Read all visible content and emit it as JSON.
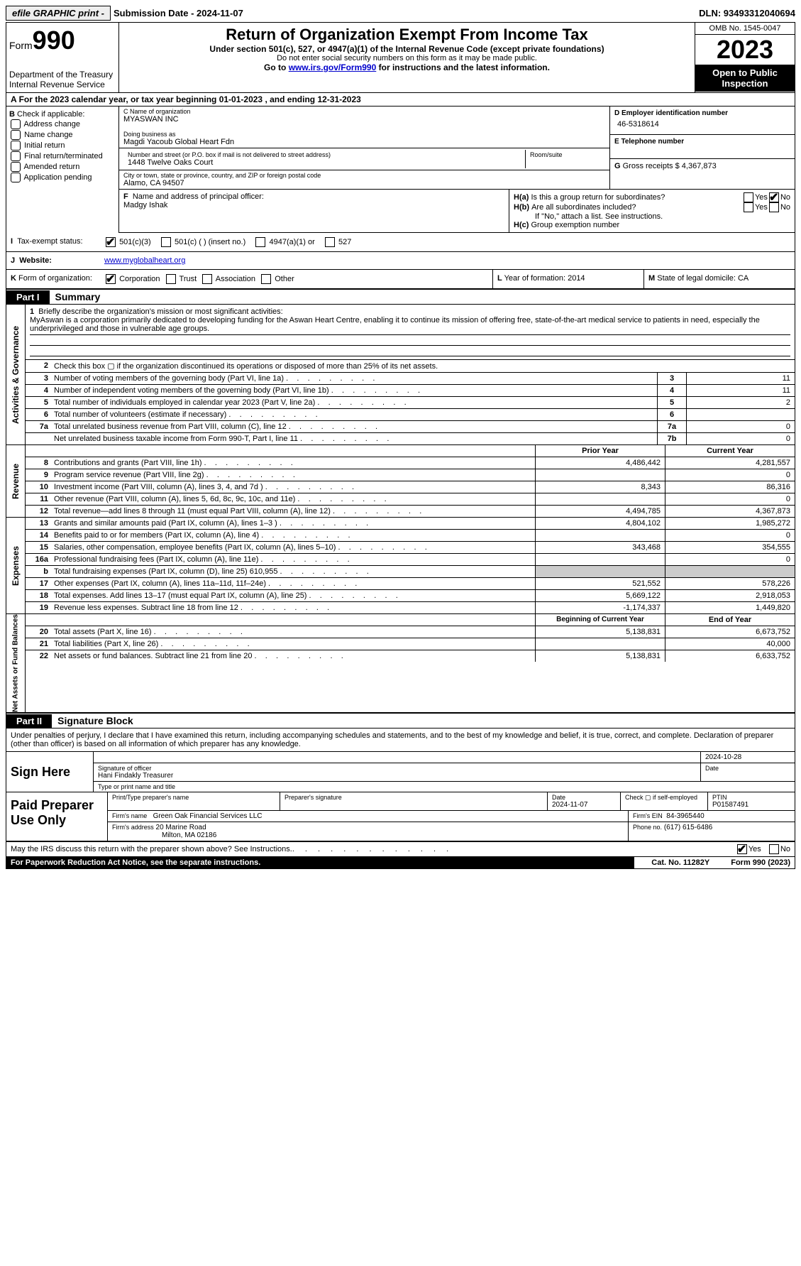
{
  "topbar": {
    "efile": "efile GRAPHIC print -",
    "submission": "Submission Date - 2024-11-07",
    "dln": "DLN: 93493312040694"
  },
  "header": {
    "form_prefix": "Form",
    "form_number": "990",
    "dept": "Department of the Treasury",
    "irs": "Internal Revenue Service",
    "title": "Return of Organization Exempt From Income Tax",
    "sub1": "Under section 501(c), 527, or 4947(a)(1) of the Internal Revenue Code (except private foundations)",
    "sub2": "Do not enter social security numbers on this form as it may be made public.",
    "sub3_a": "Go to ",
    "sub3_link": "www.irs.gov/Form990",
    "sub3_b": " for instructions and the latest information.",
    "omb": "OMB No. 1545-0047",
    "year": "2023",
    "inspect": "Open to Public Inspection"
  },
  "rowA": {
    "label": "A",
    "text_a": "For the 2023 calendar year, or tax year beginning ",
    "begin": "01-01-2023",
    "text_b": ", and ending ",
    "end": "12-31-2023"
  },
  "colB": {
    "label": "B",
    "check_label": "Check if applicable:",
    "items": [
      "Address change",
      "Name change",
      "Initial return",
      "Final return/terminated",
      "Amended return",
      "Application pending"
    ]
  },
  "colC": {
    "name_label": "C Name of organization",
    "name": "MYASWAN INC",
    "dba_label": "Doing business as",
    "dba": "Magdi Yacoub Global Heart Fdn",
    "street_label": "Number and street (or P.O. box if mail is not delivered to street address)",
    "street": "1448 Twelve Oaks Court",
    "suite_label": "Room/suite",
    "city_label": "City or town, state or province, country, and ZIP or foreign postal code",
    "city": "Alamo, CA  94507"
  },
  "colD": {
    "ein_label": "D Employer identification number",
    "ein": "46-5318614",
    "tel_label": "E Telephone number",
    "gross_label": "G",
    "gross_text": "Gross receipts $",
    "gross": "4,367,873"
  },
  "officer": {
    "f_label": "F",
    "label": "Name and address of principal officer:",
    "name": "Madgy Ishak"
  },
  "colH": {
    "ha_label": "H(a)",
    "ha_text": "Is this a group return for subordinates?",
    "ha_no_checked": true,
    "hb_label": "H(b)",
    "hb_text": "Are all subordinates included?",
    "hb_note": "If \"No,\" attach a list. See instructions.",
    "hc_label": "H(c)",
    "hc_text": "Group exemption number"
  },
  "status": {
    "i_label": "I",
    "label": "Tax-exempt status:",
    "opt1": "501(c)(3)",
    "opt2": "501(c) (  ) (insert no.)",
    "opt3": "4947(a)(1) or",
    "opt4": "527"
  },
  "website": {
    "j_label": "J",
    "label": "Website:",
    "url": "www.myglobalheart.org"
  },
  "formorg": {
    "k_label": "K",
    "label": "Form of organization:",
    "opts": [
      "Corporation",
      "Trust",
      "Association",
      "Other"
    ],
    "l_label": "L",
    "yof_label": "Year of formation:",
    "yof": "2014",
    "m_label": "M",
    "dom_label": "State of legal domicile:",
    "dom": "CA"
  },
  "part1": {
    "tab": "Part I",
    "title": "Summary"
  },
  "mission": {
    "num": "1",
    "label": "Briefly describe the organization's mission or most significant activities:",
    "text": "MyAswan is a corporation primarily dedicated to developing funding for the Aswan Heart Centre, enabling it to continue its mission of offering free, state-of-the-art medical service to patients in need, especially the underprivileged and those in vulnerable age groups."
  },
  "gov_rows": [
    {
      "num": "2",
      "desc": "Check this box ▢ if the organization discontinued its operations or disposed of more than 25% of its net assets.",
      "box": "",
      "val": "",
      "nobox": true
    },
    {
      "num": "3",
      "desc": "Number of voting members of the governing body (Part VI, line 1a)",
      "box": "3",
      "val": "11"
    },
    {
      "num": "4",
      "desc": "Number of independent voting members of the governing body (Part VI, line 1b)",
      "box": "4",
      "val": "11"
    },
    {
      "num": "5",
      "desc": "Total number of individuals employed in calendar year 2023 (Part V, line 2a)",
      "box": "5",
      "val": "2"
    },
    {
      "num": "6",
      "desc": "Total number of volunteers (estimate if necessary)",
      "box": "6",
      "val": ""
    },
    {
      "num": "7a",
      "desc": "Total unrelated business revenue from Part VIII, column (C), line 12",
      "box": "7a",
      "val": "0"
    },
    {
      "num": "",
      "desc": "Net unrelated business taxable income from Form 990-T, Part I, line 11",
      "box": "7b",
      "val": "0"
    }
  ],
  "yr_header": {
    "prior": "Prior Year",
    "current": "Current Year"
  },
  "revenue": [
    {
      "num": "8",
      "desc": "Contributions and grants (Part VIII, line 1h)",
      "p": "4,486,442",
      "c": "4,281,557"
    },
    {
      "num": "9",
      "desc": "Program service revenue (Part VIII, line 2g)",
      "p": "",
      "c": "0"
    },
    {
      "num": "10",
      "desc": "Investment income (Part VIII, column (A), lines 3, 4, and 7d )",
      "p": "8,343",
      "c": "86,316"
    },
    {
      "num": "11",
      "desc": "Other revenue (Part VIII, column (A), lines 5, 6d, 8c, 9c, 10c, and 11e)",
      "p": "",
      "c": "0"
    },
    {
      "num": "12",
      "desc": "Total revenue—add lines 8 through 11 (must equal Part VIII, column (A), line 12)",
      "p": "4,494,785",
      "c": "4,367,873"
    }
  ],
  "expenses": [
    {
      "num": "13",
      "desc": "Grants and similar amounts paid (Part IX, column (A), lines 1–3 )",
      "p": "4,804,102",
      "c": "1,985,272"
    },
    {
      "num": "14",
      "desc": "Benefits paid to or for members (Part IX, column (A), line 4)",
      "p": "",
      "c": "0"
    },
    {
      "num": "15",
      "desc": "Salaries, other compensation, employee benefits (Part IX, column (A), lines 5–10)",
      "p": "343,468",
      "c": "354,555"
    },
    {
      "num": "16a",
      "desc": "Professional fundraising fees (Part IX, column (A), line 11e)",
      "p": "",
      "c": "0"
    },
    {
      "num": "b",
      "desc": "Total fundraising expenses (Part IX, column (D), line 25) 610,955",
      "p": "grey",
      "c": "grey"
    },
    {
      "num": "17",
      "desc": "Other expenses (Part IX, column (A), lines 11a–11d, 11f–24e)",
      "p": "521,552",
      "c": "578,226"
    },
    {
      "num": "18",
      "desc": "Total expenses. Add lines 13–17 (must equal Part IX, column (A), line 25)",
      "p": "5,669,122",
      "c": "2,918,053"
    },
    {
      "num": "19",
      "desc": "Revenue less expenses. Subtract line 18 from line 12",
      "p": "-1,174,337",
      "c": "1,449,820"
    }
  ],
  "net_header": {
    "prior": "Beginning of Current Year",
    "current": "End of Year"
  },
  "net": [
    {
      "num": "20",
      "desc": "Total assets (Part X, line 16)",
      "p": "5,138,831",
      "c": "6,673,752"
    },
    {
      "num": "21",
      "desc": "Total liabilities (Part X, line 26)",
      "p": "",
      "c": "40,000"
    },
    {
      "num": "22",
      "desc": "Net assets or fund balances. Subtract line 21 from line 20",
      "p": "5,138,831",
      "c": "6,633,752"
    }
  ],
  "vlabels": {
    "gov": "Activities & Governance",
    "rev": "Revenue",
    "exp": "Expenses",
    "net": "Net Assets or Fund Balances"
  },
  "part2": {
    "tab": "Part II",
    "title": "Signature Block"
  },
  "sig": {
    "perjury": "Under penalties of perjury, I declare that I have examined this return, including accompanying schedules and statements, and to the best of my knowledge and belief, it is true, correct, and complete. Declaration of preparer (other than officer) is based on all information of which preparer has any knowledge.",
    "sign_here": "Sign Here",
    "sig_officer": "Signature of officer",
    "officer_name": "Hani Findakly  Treasurer",
    "type_name": "Type or print name and title",
    "date_label": "Date",
    "date1": "2024-10-28"
  },
  "paid": {
    "label": "Paid Preparer Use Only",
    "print_label": "Print/Type preparer's name",
    "sig_label": "Preparer's signature",
    "date_label": "Date",
    "date": "2024-11-07",
    "check_label": "Check ▢ if self-employed",
    "ptin_label": "PTIN",
    "ptin": "P01587491",
    "firm_name_label": "Firm's name",
    "firm_name": "Green Oak Financial Services LLC",
    "firm_ein_label": "Firm's EIN",
    "firm_ein": "84-3965440",
    "firm_addr_label": "Firm's address",
    "firm_addr1": "20 Marine Road",
    "firm_addr2": "Milton, MA  02186",
    "phone_label": "Phone no.",
    "phone": "(617) 615-6486"
  },
  "discuss": {
    "text": "May the IRS discuss this return with the preparer shown above? See Instructions.",
    "yes_checked": true
  },
  "footer": {
    "left": "For Paperwork Reduction Act Notice, see the separate instructions.",
    "mid": "Cat. No. 11282Y",
    "right": "Form 990 (2023)"
  },
  "yes": "Yes",
  "no": "No"
}
